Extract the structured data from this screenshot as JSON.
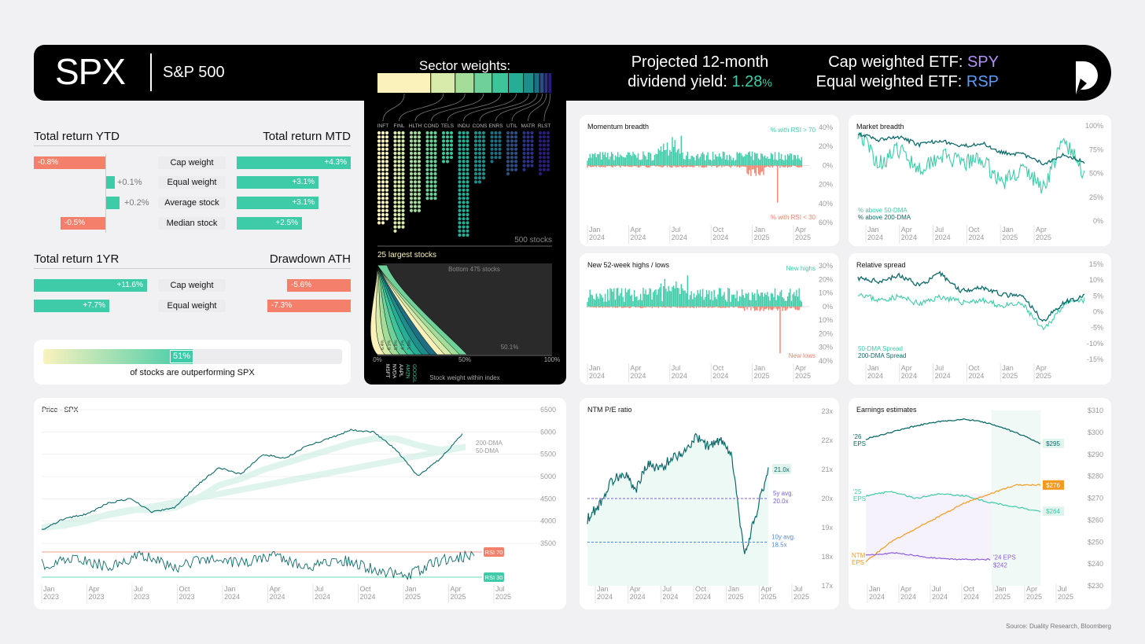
{
  "header": {
    "ticker": "SPX",
    "index_name": "S&P 500",
    "div_label1": "Projected 12-month",
    "div_label2": "dividend yield:",
    "div_value": "1.28",
    "div_pct": "%",
    "cap_label": "Cap weighted ETF:",
    "cap_etf": "SPY",
    "eq_label": "Equal weighted ETF:",
    "eq_etf": "RSP"
  },
  "returns": {
    "ytd_title": "Total return YTD",
    "mtd_title": "Total return MTD",
    "oneyr_title": "Total return 1YR",
    "dd_title": "Drawdown ATH",
    "rows": [
      {
        "label": "Cap weight",
        "ytd": "-0.8%",
        "mtd": "+4.3%"
      },
      {
        "label": "Equal weight",
        "ytd": "+0.1%",
        "mtd": "+3.1%"
      },
      {
        "label": "Average stock",
        "ytd": "+0.2%",
        "mtd": "+3.1%"
      },
      {
        "label": "Median stock",
        "ytd": "-0.5%",
        "mtd": "+2.5%"
      }
    ],
    "rows2": [
      {
        "label": "Cap weight",
        "oneyr": "+11.6%",
        "dd": "-5.6%"
      },
      {
        "label": "Equal weight",
        "oneyr": "+7.7%",
        "dd": "-7.3%"
      }
    ]
  },
  "outperform": {
    "value": "51%",
    "fraction": 0.51,
    "text": "of stocks are outperforming SPX"
  },
  "sectors": {
    "title": "Sector weights:",
    "codes": [
      "INFT",
      "FINL",
      "HLTH",
      "COND",
      "TELS",
      "INDU",
      "CONS",
      "ENRS",
      "UTIL",
      "MATR",
      "RLST"
    ],
    "counts": [
      68,
      73,
      60,
      51,
      23,
      78,
      38,
      22,
      31,
      28,
      31
    ],
    "weights": [
      30.8,
      14.0,
      10.9,
      10.3,
      9.4,
      8.6,
      6.0,
      3.3,
      2.6,
      2.2,
      2.1
    ],
    "colors": [
      "#fbf2bb",
      "#d7ebaa",
      "#a4dc99",
      "#6fd09a",
      "#3fc39b",
      "#25ad95",
      "#1f8e8a",
      "#1e6f83",
      "#2a4f84",
      "#2c3383",
      "#2a1d7a"
    ],
    "total": "500 stocks"
  },
  "largest": {
    "title": "25 largest stocks",
    "bottom": "Bottom 475 stocks",
    "tickers": [
      "MSFT",
      "NVDA",
      "AAPL",
      "AMZN",
      "GOOGL"
    ],
    "weights": [
      "6.4%",
      "6.1%",
      "5.9%",
      "4.1%",
      "3.8%"
    ],
    "mid": "50.1%",
    "axis": [
      "0%",
      "50%",
      "100%"
    ],
    "xlabel": "Stock weight within index"
  },
  "charts": {
    "momentum": {
      "title": "Momentum breadth",
      "legend_top": "% with RSI > 70",
      "legend_bot": "% with RSI < 30",
      "ticks": [
        "40%",
        "20%",
        "0%",
        "20%",
        "40%",
        "60%"
      ]
    },
    "market": {
      "title": "Market breadth",
      "legend1": "% above 50-DMA",
      "legend2": "% above 200-DMA",
      "ticks": [
        "100%",
        "75%",
        "50%",
        "25%",
        "0%"
      ]
    },
    "highs": {
      "title": "New 52-week highs / lows",
      "legend_top": "New highs",
      "legend_bot": "New lows",
      "ticks": [
        "30%",
        "20%",
        "10%",
        "0%",
        "10%",
        "20%",
        "30%",
        "40%"
      ]
    },
    "spread": {
      "title": "Relative spread",
      "legend1": "50-DMA Spread",
      "legend2": "200-DMA Spread",
      "ticks": [
        "15%",
        "10%",
        "5%",
        "0%",
        "-5%",
        "-10%",
        "-15%"
      ]
    },
    "price": {
      "title": "Price - SPX",
      "ticks": [
        "6500",
        "6000",
        "5500",
        "5000",
        "4500",
        "4000",
        "3500"
      ],
      "dma200": "200-DMA",
      "dma50": "50-DMA",
      "rsi70": "RSI 70",
      "rsi30": "RSI 30",
      "xticks": [
        [
          "Jan",
          "2023"
        ],
        [
          "Apr",
          "2023"
        ],
        [
          "Jul",
          "2023"
        ],
        [
          "Oct",
          "2023"
        ],
        [
          "Jan",
          "2024"
        ],
        [
          "Apr",
          "2024"
        ],
        [
          "Jul",
          "2024"
        ],
        [
          "Oct",
          "2024"
        ],
        [
          "Jan",
          "2025"
        ],
        [
          "Apr",
          "2025"
        ],
        [
          "Jul",
          "2025"
        ]
      ]
    },
    "pe": {
      "title": "NTM P/E ratio",
      "ticks": [
        "23x",
        "22x",
        "21x",
        "20x",
        "19x",
        "18x",
        "17x"
      ],
      "current": "21.0x",
      "avg5_l": "5y avg.",
      "avg5": "20.0x",
      "avg10_l": "10y avg.",
      "avg10": "18.5x"
    },
    "eps": {
      "title": "Earnings estimates",
      "ticks": [
        "$310",
        "$300",
        "$290",
        "$280",
        "$270",
        "$260",
        "$250",
        "$240",
        "$230"
      ],
      "l26a": "'26",
      "l26b": "EPS",
      "l25a": "'25",
      "l25b": "EPS",
      "lntma": "NTM",
      "lntmb": "EPS",
      "l24a": "'24 EPS",
      "v26": "$295",
      "vntm": "$276",
      "v25": "$264",
      "v24": "$242"
    },
    "xticks": [
      [
        "Jan",
        "2024"
      ],
      [
        "Apr",
        "2024"
      ],
      [
        "Jul",
        "2024"
      ],
      [
        "Oct",
        "2024"
      ],
      [
        "Jan",
        "2025"
      ],
      [
        "Apr",
        "2025"
      ]
    ],
    "xticks_pe": [
      [
        "Jan",
        "2024"
      ],
      [
        "Apr",
        "2024"
      ],
      [
        "Jul",
        "2024"
      ],
      [
        "Oct",
        "2024"
      ],
      [
        "Jan",
        "2025"
      ],
      [
        "Apr",
        "2025"
      ],
      [
        "Jul",
        "2025"
      ]
    ]
  },
  "chart_data": [
    {
      "type": "bar",
      "title": "Total return YTD / MTD",
      "categories": [
        "Cap weight",
        "Equal weight",
        "Average stock",
        "Median stock"
      ],
      "series": [
        {
          "name": "Total return YTD",
          "values": [
            -0.8,
            0.1,
            0.2,
            -0.5
          ]
        },
        {
          "name": "Total return MTD",
          "values": [
            4.3,
            3.1,
            3.1,
            2.5
          ]
        }
      ]
    },
    {
      "type": "bar",
      "title": "Total return 1YR / Drawdown ATH",
      "categories": [
        "Cap weight",
        "Equal weight"
      ],
      "series": [
        {
          "name": "Total return 1YR",
          "values": [
            11.6,
            7.7
          ]
        },
        {
          "name": "Drawdown ATH",
          "values": [
            -5.6,
            -7.3
          ]
        }
      ]
    },
    {
      "type": "bar",
      "title": "Sector weights:",
      "categories": [
        "INFT",
        "FINL",
        "HLTH",
        "COND",
        "TELS",
        "INDU",
        "CONS",
        "ENRS",
        "UTIL",
        "MATR",
        "RLST"
      ],
      "values": [
        68,
        73,
        60,
        51,
        23,
        78,
        38,
        22,
        31,
        28,
        31
      ]
    },
    {
      "type": "line",
      "title": "Price - SPX",
      "ylim": [
        3500,
        6500
      ],
      "x": [
        "Jan 2023",
        "Apr 2023",
        "Jul 2023",
        "Oct 2023",
        "Jan 2024",
        "Apr 2024",
        "Jul 2024",
        "Oct 2024",
        "Jan 2025",
        "Apr 2025"
      ],
      "values": [
        3850,
        4100,
        4450,
        4200,
        4800,
        5250,
        5500,
        5750,
        5900,
        5400
      ]
    },
    {
      "type": "line",
      "title": "NTM P/E ratio",
      "ylim": [
        17,
        23
      ],
      "x": [
        "Jan 2024",
        "Apr 2024",
        "Jul 2024",
        "Oct 2024",
        "Jan 2025",
        "Apr 2025"
      ],
      "values": [
        19.5,
        20.6,
        21.3,
        21.8,
        22.0,
        18.3
      ]
    },
    {
      "type": "line",
      "title": "Earnings estimates",
      "ylim": [
        230,
        310
      ],
      "series": [
        {
          "name": "'26 EPS",
          "last": 295
        },
        {
          "name": "NTM EPS",
          "last": 276
        },
        {
          "name": "'25 EPS",
          "last": 264
        },
        {
          "name": "'24 EPS",
          "last": 242
        }
      ]
    }
  ],
  "source": "Source: Duality Research, Bloomberg"
}
